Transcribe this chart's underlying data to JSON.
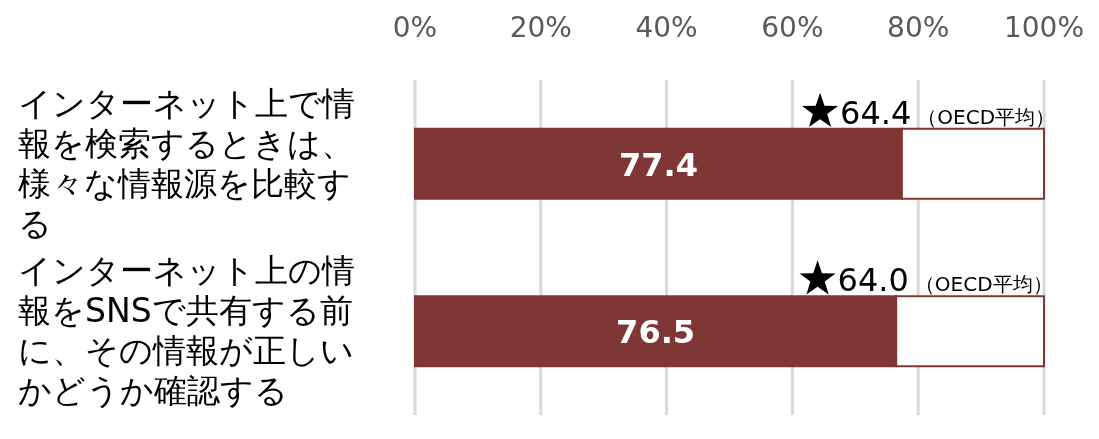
{
  "chart_data": {
    "type": "bar",
    "orientation": "horizontal",
    "stacked": true,
    "categories": [
      "インターネット上で情報を検索するときは、様々な情報源を比較する",
      "インターネット上の情報をSNSで共有する前に、その情報が正しいかどうか確認する"
    ],
    "series": [
      {
        "color": "#7f3735",
        "values": [
          77.4,
          76.5
        ],
        "value_labels": [
          "77.4",
          "76.5"
        ]
      },
      {
        "color": "#ffffff",
        "values": [
          22.6,
          23.5
        ]
      },
      {
        "type": "scatter",
        "name": "（OECD平均）",
        "color": "#000000",
        "marker": "star",
        "values": [
          64.4,
          64.0
        ],
        "value_labels": [
          "64.4",
          "64.0"
        ]
      }
    ],
    "xlim": [
      0,
      100
    ],
    "xticks": [
      {
        "value": 0,
        "label": "0%"
      },
      {
        "value": 20,
        "label": "20%"
      },
      {
        "value": 40,
        "label": "40%"
      },
      {
        "value": 60,
        "label": "60%"
      },
      {
        "value": 80,
        "label": "80%"
      },
      {
        "value": 100,
        "label": "100%"
      }
    ],
    "grid": "x",
    "legend": false
  }
}
